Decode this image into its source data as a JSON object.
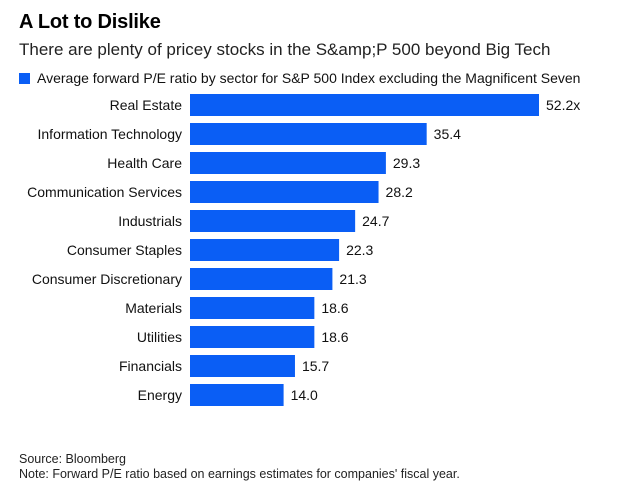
{
  "colors": {
    "bar": "#0a5ef5",
    "text": "#000000"
  },
  "chart_data": {
    "type": "bar",
    "orientation": "horizontal",
    "title": "A Lot to Dislike",
    "subtitle": "There are plenty of pricey stocks in the S&amp;P 500 beyond Big Tech",
    "legend": [
      "Average forward P/E ratio by sector for S&P 500 Index excluding the Magnificent Seven"
    ],
    "legend_position": "top-left",
    "categories": [
      "Real Estate",
      "Information Technology",
      "Health Care",
      "Communication Services",
      "Industrials",
      "Consumer Staples",
      "Consumer Discretionary",
      "Materials",
      "Utilities",
      "Financials",
      "Energy"
    ],
    "values": [
      52.2,
      35.4,
      29.3,
      28.2,
      24.7,
      22.3,
      21.3,
      18.6,
      18.6,
      15.7,
      14.0
    ],
    "value_labels": [
      "52.2x",
      "35.4",
      "29.3",
      "28.2",
      "24.7",
      "22.3",
      "21.3",
      "18.6",
      "18.6",
      "15.7",
      "14.0"
    ],
    "xlim": [
      0,
      52.2
    ],
    "grid": false
  },
  "footer": {
    "source": "Source: Bloomberg",
    "note": "Note: Forward P/E ratio based on earnings estimates for companies' fiscal year."
  }
}
